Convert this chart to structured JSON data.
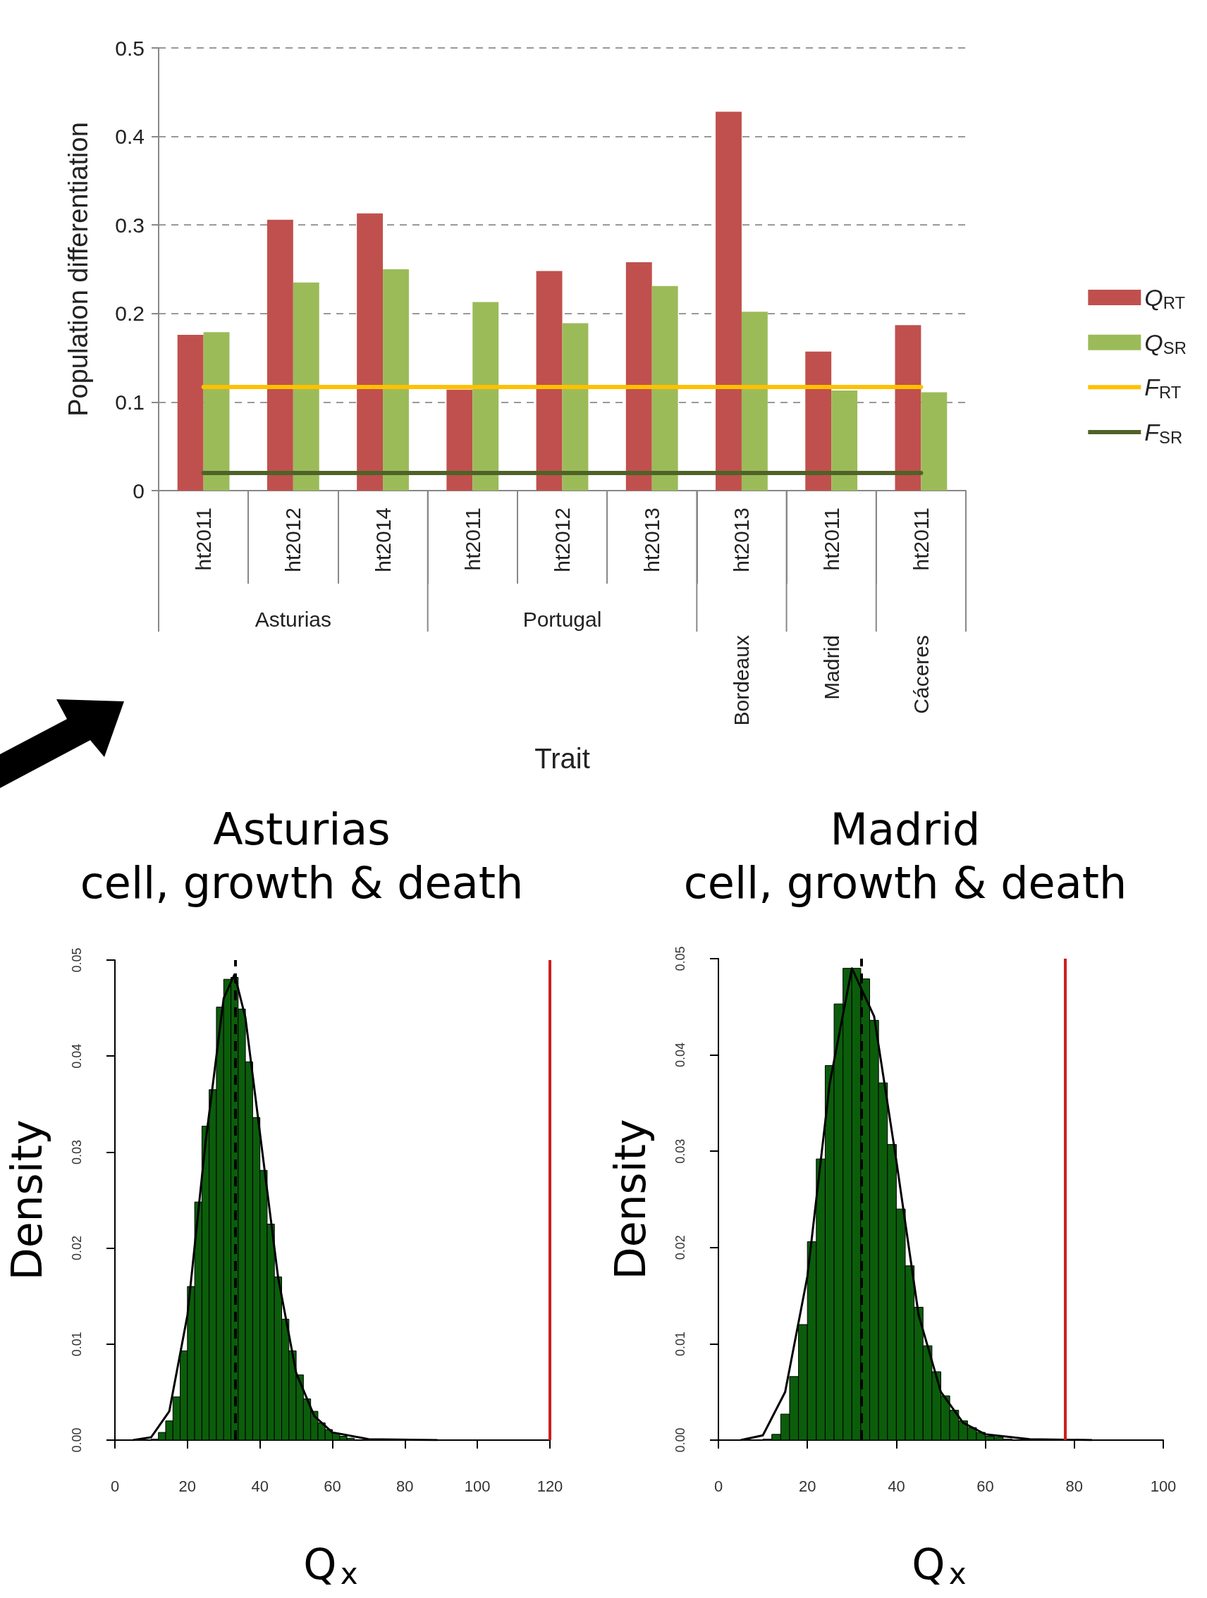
{
  "chart_data": [
    {
      "type": "bar",
      "ylabel": "Population differentiation",
      "xlabel": "Trait",
      "categories": [
        "ht2011",
        "ht2012",
        "ht2014",
        "ht2011",
        "ht2012",
        "ht2013",
        "ht2013",
        "ht2011",
        "ht2011"
      ],
      "annotations": [
        "Asturias",
        "Portugal",
        "Bordeaux",
        "Madrid",
        "Cáceres"
      ],
      "series": [
        {
          "name": "Q$_{RT}$",
          "color": "#c0504d",
          "values": [
            0.176,
            0.306,
            0.313,
            0.114,
            0.248,
            0.258,
            0.428,
            0.157,
            0.187
          ]
        },
        {
          "name": "Q$_{SR}$",
          "color": "#9bbb59",
          "values": [
            0.179,
            0.235,
            0.25,
            0.213,
            0.189,
            0.231,
            0.202,
            0.113,
            0.111
          ]
        },
        {
          "name": "F$_{RT}$",
          "type": "line",
          "color": "#ffc000",
          "values": [
            0.117,
            0.117,
            0.117,
            0.117,
            0.117,
            0.117,
            0.117,
            0.117,
            0.117
          ]
        },
        {
          "name": "F$_{SR}$",
          "type": "line",
          "color": "#4f6228",
          "values": [
            0.02,
            0.02,
            0.02,
            0.02,
            0.02,
            0.02,
            0.02,
            0.02,
            0.02
          ]
        }
      ],
      "ylim": [
        0,
        0.5
      ],
      "yticks": [
        0,
        0.1,
        0.2,
        0.3,
        0.4,
        0.5
      ],
      "grid": "y",
      "legend": "right",
      "marker": "none"
    },
    {
      "type": "histogram",
      "title": "Asturias",
      "subtitle": "cell, growth & death",
      "xlabel": "Q$_{x}$",
      "ylabel": "Density",
      "series": [
        {
          "type": "histogram",
          "color": "#0b5d0b",
          "bins": [
            10,
            12,
            14,
            16,
            18,
            20,
            22,
            24,
            26,
            28,
            30,
            32,
            34,
            36,
            38,
            40,
            42,
            44,
            46,
            48,
            50,
            52,
            54,
            56,
            58,
            60,
            62,
            64,
            66
          ],
          "values": [
            0.0001,
            0.0008,
            0.002,
            0.0045,
            0.0093,
            0.016,
            0.0248,
            0.0327,
            0.0365,
            0.0451,
            0.048,
            0.0482,
            0.0449,
            0.0394,
            0.0336,
            0.0281,
            0.0225,
            0.017,
            0.0126,
            0.0093,
            0.0068,
            0.0043,
            0.003,
            0.0018,
            0.0011,
            0.0007,
            0.0004,
            0.0002
          ]
        },
        {
          "type": "line",
          "color": "#000000",
          "x": [
            5,
            10,
            15,
            20,
            25,
            30,
            33,
            36,
            40,
            45,
            50,
            55,
            60,
            70,
            89
          ],
          "values": [
            0,
            0.0003,
            0.003,
            0.013,
            0.031,
            0.046,
            0.0485,
            0.044,
            0.032,
            0.017,
            0.007,
            0.0025,
            0.0008,
            0.0001,
            0
          ]
        }
      ],
      "ref_lines": [
        {
          "axis": "x",
          "value": 33.3,
          "color": "#000000",
          "line_style": "dashed"
        },
        {
          "axis": "x",
          "value": 120,
          "color": "#cc1f1f",
          "line_style": "solid"
        }
      ],
      "xlim": [
        0,
        120
      ],
      "xticks": [
        0,
        20,
        40,
        60,
        80,
        100,
        120
      ],
      "ylim": [
        0,
        0.05
      ],
      "yticks": [
        {
          "value": 0,
          "label": "0.00"
        },
        {
          "value": 0.01,
          "label": "0.01"
        },
        {
          "value": 0.02,
          "label": "0.02"
        },
        {
          "value": 0.03,
          "label": "0.03"
        },
        {
          "value": 0.04,
          "label": "0.04"
        },
        {
          "value": 0.05,
          "label": "0.05"
        }
      ],
      "grid": false,
      "marker": "none"
    },
    {
      "type": "histogram",
      "title": "Madrid",
      "subtitle": "cell, growth & death",
      "xlabel": "Q$_{x}$",
      "ylabel": "Density",
      "series": [
        {
          "type": "histogram",
          "color": "#0b5d0b",
          "bins": [
            10,
            12,
            14,
            16,
            18,
            20,
            22,
            24,
            26,
            28,
            30,
            32,
            34,
            36,
            38,
            40,
            42,
            44,
            46,
            48,
            50,
            52,
            54,
            56,
            58,
            60,
            62,
            64,
            66
          ],
          "values": [
            0.0001,
            0.0006,
            0.0027,
            0.0066,
            0.012,
            0.0206,
            0.0292,
            0.0389,
            0.0453,
            0.049,
            0.049,
            0.0479,
            0.0436,
            0.0371,
            0.0307,
            0.024,
            0.0181,
            0.0138,
            0.0098,
            0.0071,
            0.0046,
            0.0031,
            0.002,
            0.0013,
            0.0008,
            0.0004,
            0.0003,
            0.0001
          ]
        },
        {
          "type": "line",
          "color": "#000000",
          "x": [
            5,
            10,
            15,
            20,
            25,
            30,
            35,
            40,
            45,
            50,
            55,
            60,
            70,
            84
          ],
          "values": [
            0,
            0.0005,
            0.005,
            0.017,
            0.037,
            0.049,
            0.044,
            0.029,
            0.013,
            0.005,
            0.0018,
            0.0006,
            0.0001,
            0
          ]
        }
      ],
      "ref_lines": [
        {
          "axis": "x",
          "value": 32.2,
          "color": "#000000",
          "line_style": "dashed"
        },
        {
          "axis": "x",
          "value": 78,
          "color": "#cc1f1f",
          "line_style": "solid"
        }
      ],
      "xlim": [
        0,
        100
      ],
      "xticks": [
        0,
        20,
        40,
        60,
        80,
        100
      ],
      "ylim": [
        0,
        0.05
      ],
      "yticks": [
        {
          "value": 0,
          "label": "0.00"
        },
        {
          "value": 0.01,
          "label": "0.01"
        },
        {
          "value": 0.02,
          "label": "0.02"
        },
        {
          "value": 0.03,
          "label": "0.03"
        },
        {
          "value": 0.04,
          "label": "0.04"
        },
        {
          "value": 0.05,
          "label": "0.05"
        }
      ],
      "grid": false,
      "marker": "none"
    }
  ]
}
